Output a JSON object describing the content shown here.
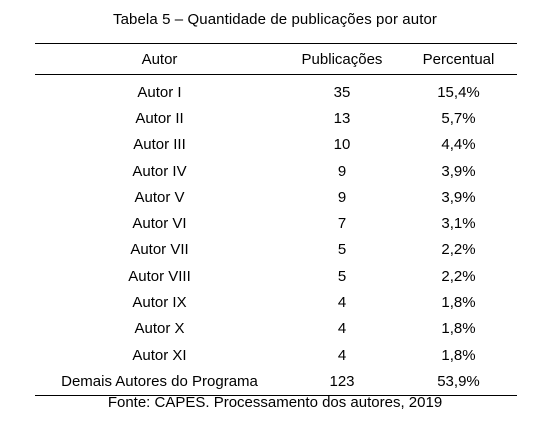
{
  "caption": "Tabela 5 – Quantidade de publicações por autor",
  "table": {
    "headers": [
      "Autor",
      "Publicações",
      "Percentual"
    ],
    "rows": [
      [
        "Autor I",
        "35",
        "15,4%"
      ],
      [
        "Autor II",
        "13",
        "5,7%"
      ],
      [
        "Autor III",
        "10",
        "4,4%"
      ],
      [
        "Autor IV",
        "9",
        "3,9%"
      ],
      [
        "Autor V",
        "9",
        "3,9%"
      ],
      [
        "Autor VI",
        "7",
        "3,1%"
      ],
      [
        "Autor VII",
        "5",
        "2,2%"
      ],
      [
        "Autor VIII",
        "5",
        "2,2%"
      ],
      [
        "Autor IX",
        "4",
        "1,8%"
      ],
      [
        "Autor X",
        "4",
        "1,8%"
      ],
      [
        "Autor XI",
        "4",
        "1,8%"
      ],
      [
        "Demais Autores do Programa",
        "123",
        "53,9%"
      ]
    ]
  },
  "source": "Fonte: CAPES. Processamento dos autores, 2019"
}
